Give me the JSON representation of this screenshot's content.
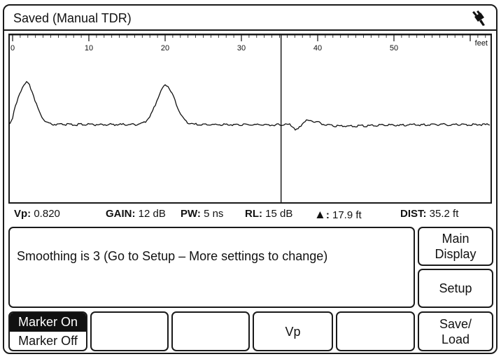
{
  "window": {
    "title": "Saved (Manual TDR)",
    "status_icon": "plug-icon"
  },
  "plot": {
    "unit_label": "feet",
    "tick_labels": [
      "0",
      "10",
      "20",
      "30",
      "40",
      "50"
    ],
    "x_range": [
      0,
      62
    ],
    "cursor_position_ft": 35.2
  },
  "status": {
    "vp_label": "Vp:",
    "vp_value": "0.820",
    "gain_label": "GAIN:",
    "gain_value": "12 dB",
    "pw_label": "PW:",
    "pw_value": "5 ns",
    "rl_label": "RL:",
    "rl_value": "15 dB",
    "delta_symbol": "▲",
    "delta_sep": ":",
    "delta_value": "17.9 ft",
    "dist_label": "DIST:",
    "dist_value": "35.2 ft"
  },
  "message": "Smoothing is 3 (Go to Setup – More settings to change)",
  "side_buttons": {
    "main_display_line1": "Main",
    "main_display_line2": "Display",
    "setup": "Setup",
    "save_line1": "Save/",
    "save_line2": "Load"
  },
  "bottom_buttons": {
    "marker_on": "Marker On",
    "marker_off": "Marker Off",
    "vp": "Vp"
  }
}
